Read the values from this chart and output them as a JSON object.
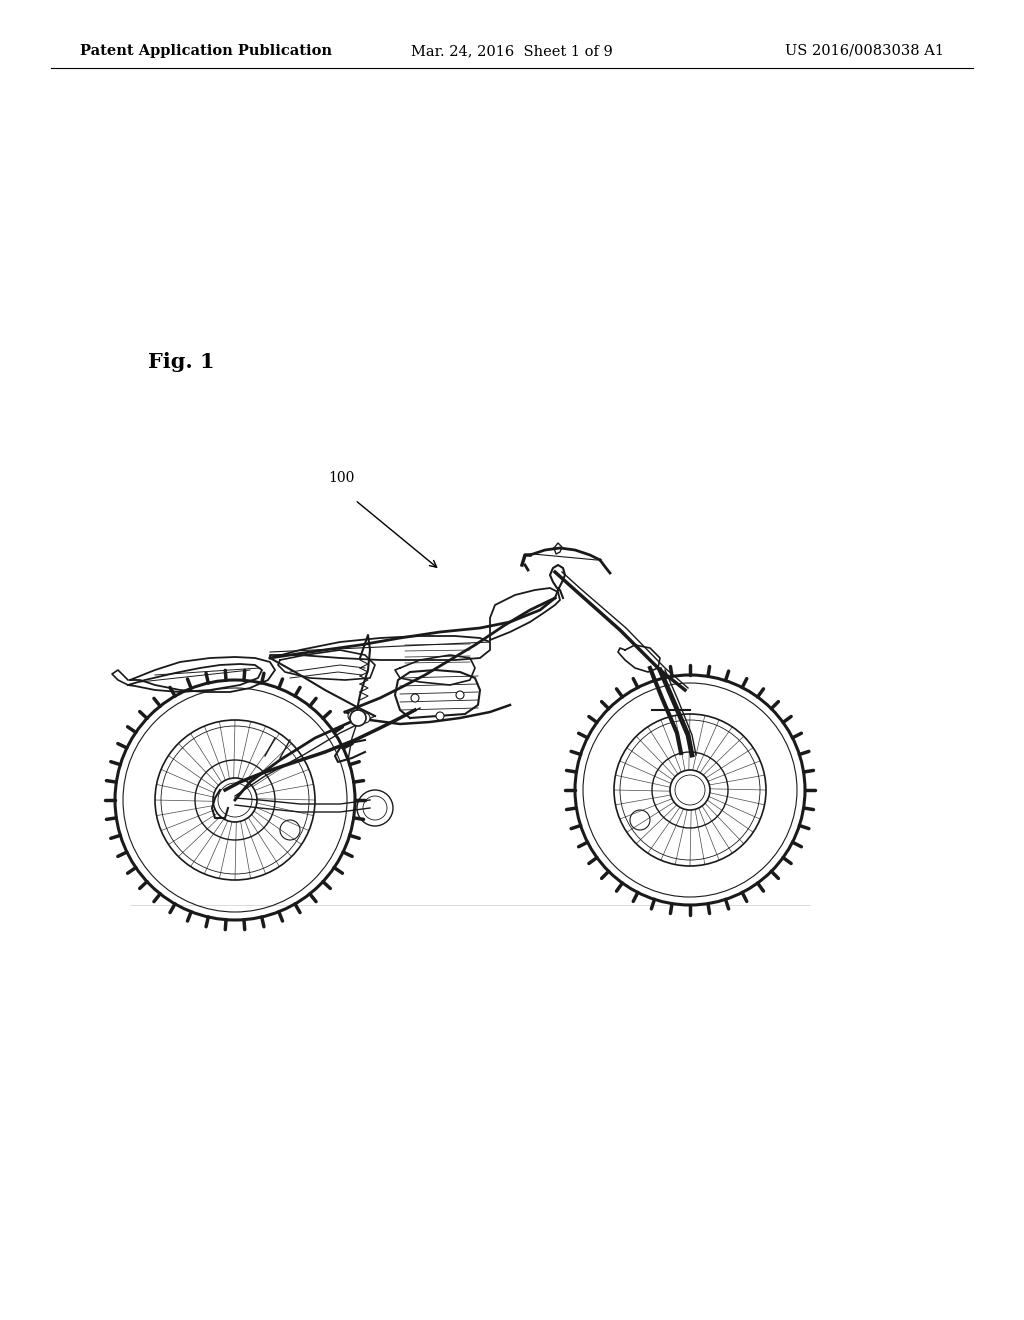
{
  "bg_color": "#ffffff",
  "page_color": "#f5f5f5",
  "header_left": "Patent Application Publication",
  "header_center": "Mar. 24, 2016  Sheet 1 of 9",
  "header_right": "US 2016/0083038 A1",
  "header_fontsize": 10.5,
  "fig_label": "Fig. 1",
  "fig_label_fontsize": 15,
  "ref_number": "100",
  "ref_fontsize": 10
}
